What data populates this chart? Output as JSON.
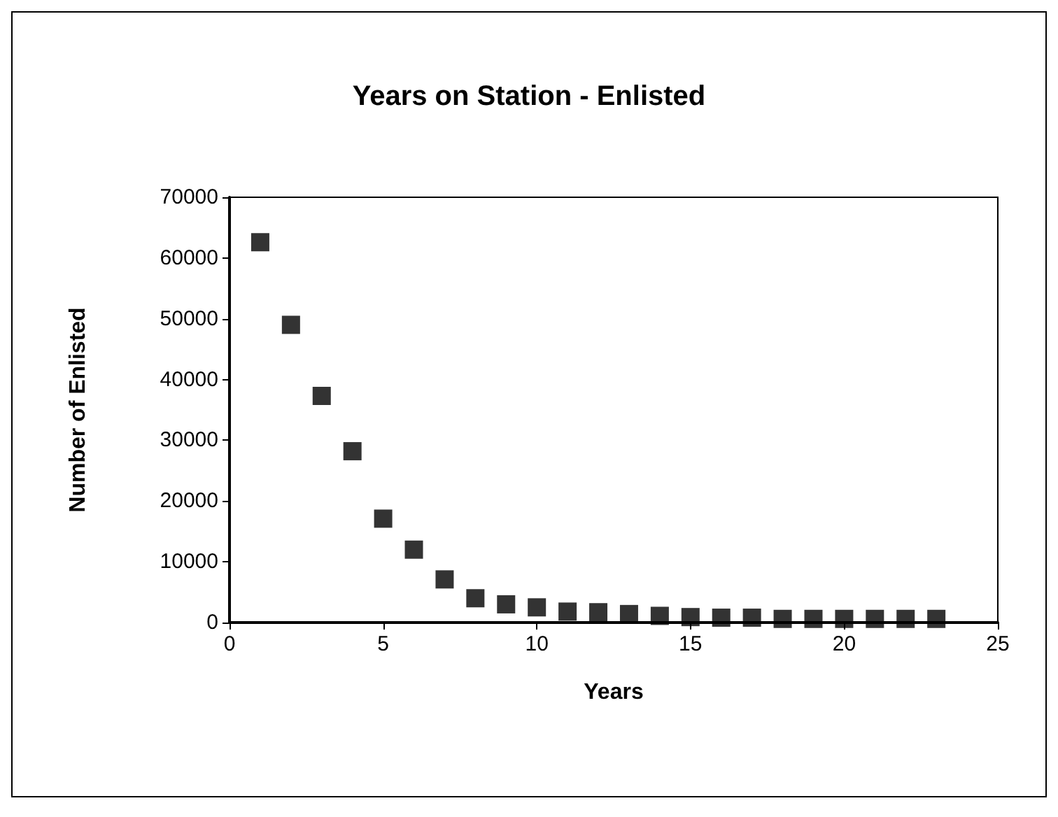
{
  "chart_data": {
    "type": "scatter",
    "title": "Years on Station - Enlisted",
    "xlabel": "Years",
    "ylabel": "Number of Enlisted",
    "x": [
      1,
      2,
      3,
      4,
      5,
      6,
      7,
      8,
      9,
      10,
      11,
      12,
      13,
      14,
      15,
      16,
      17,
      18,
      19,
      20,
      21,
      22,
      23
    ],
    "series": [
      {
        "color": "#000000",
        "values": [
          62600,
          49000,
          37300,
          28200,
          17100,
          12000,
          7100,
          4000,
          3000,
          2500,
          1800,
          1700,
          1400,
          1100,
          900,
          800,
          800,
          600,
          600,
          600,
          600,
          600,
          600
        ]
      }
    ],
    "xlim": [
      0,
      25
    ],
    "xticks": [
      0,
      5,
      10,
      15,
      20,
      25
    ],
    "ylim": [
      0,
      70000
    ],
    "yticks": [
      0,
      10000,
      20000,
      30000,
      40000,
      50000,
      60000,
      70000
    ],
    "grid": false,
    "marker": "square"
  }
}
